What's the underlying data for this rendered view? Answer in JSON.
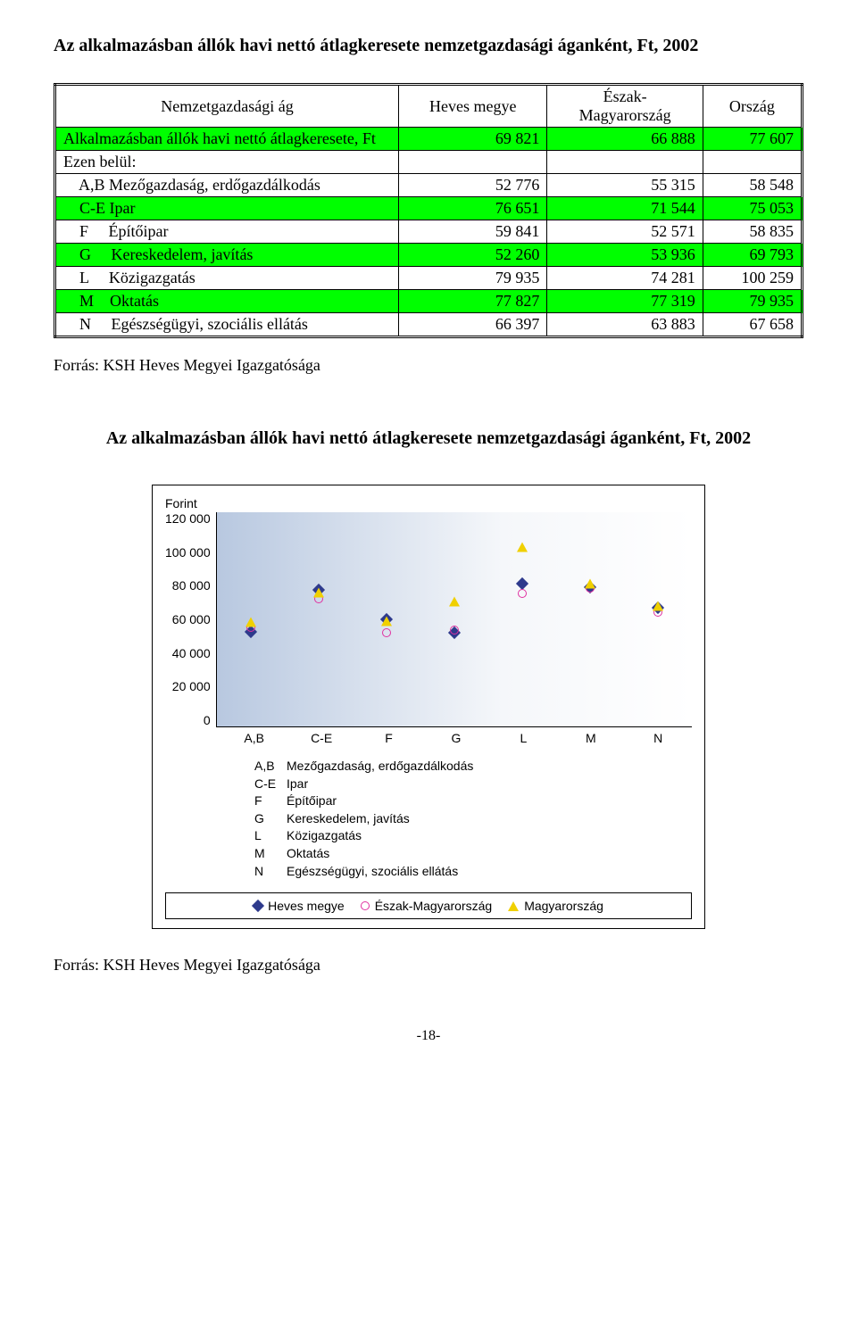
{
  "title": "Az alkalmazásban állók havi nettó átlagkeresete nemzetgazdasági áganként, Ft, 2002",
  "table": {
    "headers": [
      "Nemzetgazdasági ág",
      "Heves megye",
      "Észak-\nMagyarország",
      "Ország"
    ],
    "rowGroupLabel": "Alkalmazásban állók havi nettó átlagkeresete, Ft",
    "rowSubLabel": "Ezen belül:",
    "groupRow": {
      "label": "Alkalmazásban állók havi nettó átlagkeresete, Ft",
      "vals": [
        "69 821",
        "66 888",
        "77 607"
      ],
      "bg": "#00ff00"
    },
    "subHeader": {
      "label": "Ezen belül:",
      "bg": "#ffffff"
    },
    "rows": [
      {
        "label": "    A,B Mezőgazdaság, erdőgazdálkodás",
        "vals": [
          "52 776",
          "55 315",
          "58 548"
        ],
        "bg": "#ffffff"
      },
      {
        "label": "    C-E Ipar",
        "vals": [
          "76 651",
          "71 544",
          "75 053"
        ],
        "bg": "#00ff00"
      },
      {
        "label": "    F     Építőipar",
        "vals": [
          "59 841",
          "52 571",
          "58 835"
        ],
        "bg": "#ffffff"
      },
      {
        "label": "    G     Kereskedelem, javítás",
        "vals": [
          "52 260",
          "53 936",
          "69 793"
        ],
        "bg": "#00ff00"
      },
      {
        "label": "    L     Közigazgatás",
        "vals": [
          "79 935",
          "74 281",
          "100 259"
        ],
        "bg": "#ffffff"
      },
      {
        "label": "    M    Oktatás",
        "vals": [
          "77 827",
          "77 319",
          "79 935"
        ],
        "bg": "#00ff00"
      },
      {
        "label": "    N     Egészségügyi, szociális ellátás",
        "vals": [
          "66 397",
          "63 883",
          "67 658"
        ],
        "bg": "#ffffff"
      }
    ]
  },
  "source": "Forrás: KSH Heves Megyei Igazgatósága",
  "subtitle": "Az alkalmazásban állók havi nettó átlagkeresete nemzetgazdasági áganként, Ft, 2002",
  "chart": {
    "yLabel": "Forint",
    "yTicks": [
      "120 000",
      "100 000",
      "80 000",
      "60 000",
      "40 000",
      "20 000",
      "0"
    ],
    "ylim": [
      0,
      120000
    ],
    "xCats": [
      "A,B",
      "C-E",
      "F",
      "G",
      "L",
      "M",
      "N"
    ],
    "series": [
      {
        "name": "Heves megye",
        "marker": "diamond",
        "color": "#2e3a8c",
        "values": [
          52776,
          76651,
          59841,
          52260,
          79935,
          77827,
          66397
        ]
      },
      {
        "name": "Észak-Magyarország",
        "marker": "circle",
        "color": "#e030a0",
        "values": [
          55315,
          71544,
          52571,
          53936,
          74281,
          77319,
          63883
        ]
      },
      {
        "name": "Magyarország",
        "marker": "triangle",
        "color": "#f0d000",
        "values": [
          58548,
          75053,
          58835,
          69793,
          100259,
          79935,
          67658
        ]
      }
    ],
    "catLegend": [
      {
        "k": "A,B",
        "v": "Mezőgazdaság, erdőgazdálkodás"
      },
      {
        "k": "C-E",
        "v": "Ipar"
      },
      {
        "k": "F",
        "v": "Építőipar"
      },
      {
        "k": "G",
        "v": "Kereskedelem, javítás"
      },
      {
        "k": "L",
        "v": "Közigazgatás"
      },
      {
        "k": "M",
        "v": "Oktatás"
      },
      {
        "k": "N",
        "v": "Egészségügyi, szociális ellátás"
      }
    ]
  },
  "source2": "Forrás: KSH Heves Megyei Igazgatósága",
  "pageNum": "-18-"
}
